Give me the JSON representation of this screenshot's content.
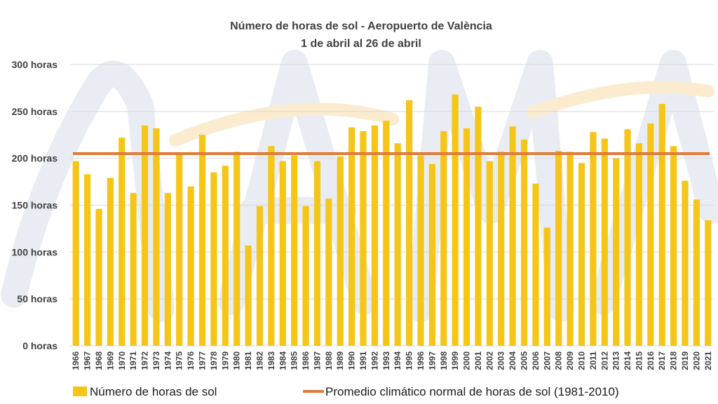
{
  "chart_data": {
    "type": "bar",
    "title": "Número de horas de sol - Aeropuerto de València",
    "subtitle": "1 de abril al 26 de abril",
    "categories": [
      "1966",
      "1967",
      "1968",
      "1969",
      "1970",
      "1971",
      "1972",
      "1973",
      "1974",
      "1975",
      "1976",
      "1977",
      "1978",
      "1979",
      "1980",
      "1981",
      "1982",
      "1983",
      "1984",
      "1985",
      "1986",
      "1987",
      "1988",
      "1989",
      "1990",
      "1991",
      "1992",
      "1993",
      "1994",
      "1995",
      "1996",
      "1997",
      "1998",
      "1999",
      "2000",
      "2001",
      "2002",
      "2003",
      "2004",
      "2005",
      "2006",
      "2007",
      "2008",
      "2009",
      "2010",
      "2011",
      "2012",
      "2013",
      "2014",
      "2015",
      "2016",
      "2017",
      "2018",
      "2019",
      "2020",
      "2021"
    ],
    "series": [
      {
        "name": "Número de horas de sol",
        "type": "bar",
        "color": "#f5c518",
        "values": [
          197,
          183,
          146,
          179,
          222,
          163,
          235,
          232,
          163,
          204,
          170,
          225,
          185,
          192,
          207,
          107,
          149,
          213,
          197,
          203,
          149,
          197,
          157,
          202,
          233,
          229,
          235,
          240,
          216,
          262,
          203,
          194,
          229,
          268,
          232,
          255,
          197,
          207,
          234,
          220,
          173,
          126,
          208,
          207,
          195,
          228,
          221,
          200,
          231,
          216,
          237,
          258,
          213,
          176,
          156,
          134
        ]
      },
      {
        "name": "Promedio climático normal de horas de sol (1981-2010)",
        "type": "line",
        "color": "#e07b39",
        "value": 205
      }
    ],
    "yticks": [
      "0 horas",
      "50 horas",
      "100 horas",
      "150 horas",
      "200 horas",
      "250 horas",
      "300 horas"
    ],
    "ylim": [
      0,
      300
    ],
    "grid": true,
    "legend_position": "bottom"
  }
}
